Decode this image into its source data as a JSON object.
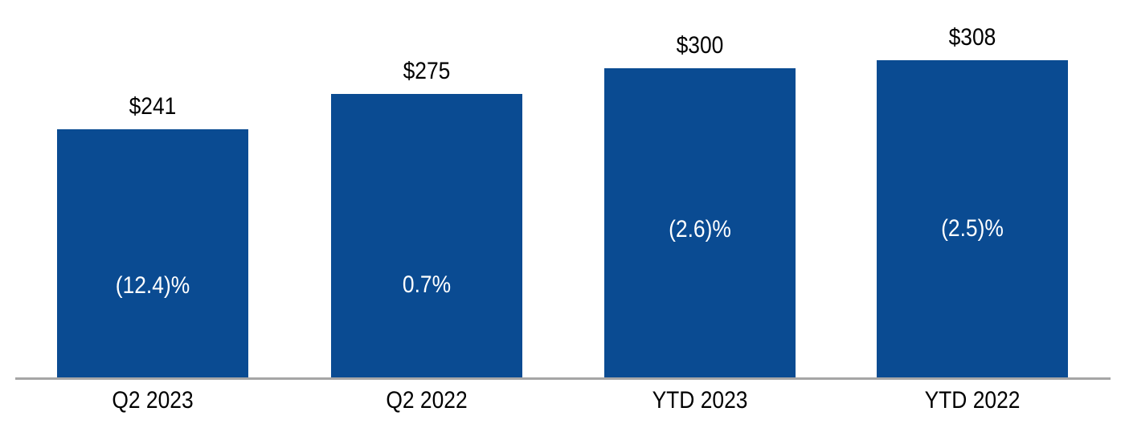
{
  "chart_data": {
    "type": "bar",
    "title": "",
    "categories": [
      "Q2 2023",
      "Q2 2022",
      "YTD 2023",
      "YTD 2022"
    ],
    "values": [
      241,
      275,
      300,
      308
    ],
    "value_labels": [
      "$241",
      "$275",
      "$300",
      "$308"
    ],
    "pct_labels": [
      "(12.4)%",
      "0.7%",
      "(2.6)%",
      "(2.5)%"
    ],
    "xlabel": "",
    "ylabel": "",
    "ylim": [
      0,
      320
    ],
    "grid": false,
    "legend_position": "none",
    "colors": {
      "bar": "#0A4B92",
      "axis_line": "#A6A6A6",
      "value_label": "#000000",
      "pct_label": "#FFFFFF",
      "tick_label": "#000000",
      "background": "#FFFFFF"
    }
  }
}
